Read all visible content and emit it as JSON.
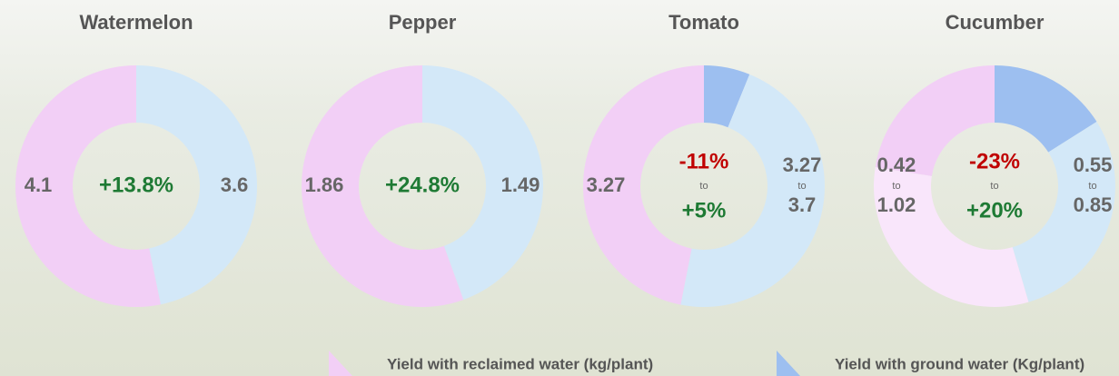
{
  "chart_data": [
    {
      "type": "donut",
      "title": "Watermelon",
      "series": [
        {
          "name": "Yield with reclaimed water (kg/plant)",
          "color": "#f2cff6",
          "range_color": "#f9e6fb",
          "values": [
            4.1
          ]
        },
        {
          "name": "Yield with ground water (Kg/plant)",
          "color": "#d3e8f8",
          "range_color": "#9dbff0",
          "values": [
            3.6
          ]
        }
      ],
      "change": [
        13.8
      ],
      "change_labels": [
        "+13.8%"
      ]
    },
    {
      "type": "donut",
      "title": "Pepper",
      "series": [
        {
          "name": "Yield with reclaimed water (kg/plant)",
          "color": "#f2cff6",
          "range_color": "#f9e6fb",
          "values": [
            1.86
          ]
        },
        {
          "name": "Yield with ground water (Kg/plant)",
          "color": "#d3e8f8",
          "range_color": "#9dbff0",
          "values": [
            1.49
          ]
        }
      ],
      "change": [
        24.8
      ],
      "change_labels": [
        "+24.8%"
      ]
    },
    {
      "type": "donut",
      "title": "Tomato",
      "series": [
        {
          "name": "Yield with reclaimed water (kg/plant)",
          "color": "#f2cff6",
          "range_color": "#f9e6fb",
          "values": [
            3.27
          ]
        },
        {
          "name": "Yield with ground water (Kg/plant)",
          "color": "#d3e8f8",
          "range_color": "#9dbff0",
          "values": [
            3.27,
            3.7
          ]
        }
      ],
      "change": [
        -11,
        5
      ],
      "change_labels": [
        "-11%",
        "+5%"
      ]
    },
    {
      "type": "donut",
      "title": "Cucumber",
      "series": [
        {
          "name": "Yield with reclaimed water (kg/plant)",
          "color": "#f2cff6",
          "range_color": "#f9e6fb",
          "values": [
            0.42,
            1.02
          ]
        },
        {
          "name": "Yield with ground water (Kg/plant)",
          "color": "#d3e8f8",
          "range_color": "#9dbff0",
          "values": [
            0.55,
            0.85
          ]
        }
      ],
      "change": [
        -23,
        20
      ],
      "change_labels": [
        "-23%",
        "+20%"
      ]
    }
  ],
  "range_word": "to",
  "positive_color": "#1e7a34",
  "negative_color": "#c00000"
}
